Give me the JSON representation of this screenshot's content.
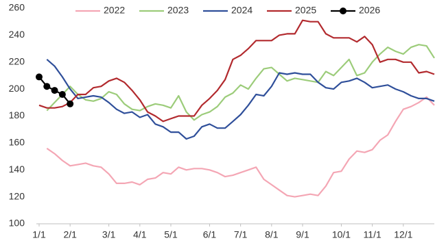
{
  "chart_data": {
    "type": "line",
    "categories": [
      "1/1",
      null,
      null,
      null,
      "2/1",
      null,
      null,
      null,
      null,
      "3/1",
      null,
      null,
      null,
      "4/1",
      null,
      null,
      null,
      "5/1",
      null,
      null,
      null,
      null,
      "6/1",
      null,
      null,
      null,
      "7/1",
      null,
      null,
      null,
      "8/1",
      null,
      null,
      null,
      "9/1",
      null,
      null,
      null,
      null,
      "10/1",
      null,
      null,
      null,
      "11/1",
      null,
      null,
      null,
      "12/1",
      null,
      null,
      null,
      null
    ],
    "ylim": [
      100,
      260
    ],
    "yticks": [
      100,
      120,
      140,
      160,
      180,
      200,
      220,
      240,
      260
    ],
    "grid": false,
    "legend": "top",
    "series": [
      {
        "name": "2022",
        "color": "#f4a6b4",
        "markers": false,
        "values": [
          null,
          156,
          152,
          147,
          143,
          144,
          145,
          143,
          142,
          137,
          130,
          130,
          131,
          129,
          133,
          134,
          138,
          137,
          142,
          140,
          141,
          141,
          140,
          138,
          135,
          136,
          138,
          140,
          142,
          133,
          129,
          125,
          121,
          120,
          121,
          122,
          121,
          128,
          138,
          139,
          148,
          154,
          153,
          155,
          162,
          166,
          176,
          185,
          187,
          190,
          194,
          188
        ]
      },
      {
        "name": "2023",
        "color": "#9ccc7a",
        "markers": false,
        "values": [
          null,
          184,
          190,
          196,
          202,
          196,
          192,
          191,
          193,
          198,
          196,
          189,
          185,
          184,
          187,
          189,
          188,
          186,
          195,
          183,
          177,
          181,
          183,
          187,
          194,
          197,
          203,
          200,
          208,
          215,
          216,
          211,
          206,
          208,
          207,
          206,
          205,
          213,
          210,
          216,
          222,
          210,
          212,
          220,
          226,
          231,
          228,
          226,
          231,
          233,
          232,
          223
        ]
      },
      {
        "name": "2024",
        "color": "#2f4f9a",
        "markers": false,
        "values": [
          null,
          222,
          217,
          209,
          200,
          193,
          194,
          195,
          194,
          190,
          185,
          182,
          183,
          179,
          181,
          174,
          172,
          168,
          168,
          163,
          165,
          172,
          174,
          171,
          171,
          176,
          181,
          188,
          196,
          195,
          202,
          212,
          211,
          212,
          211,
          211,
          205,
          201,
          200,
          205,
          206,
          208,
          205,
          201,
          202,
          203,
          200,
          198,
          195,
          193,
          193,
          191
        ]
      },
      {
        "name": "2025",
        "color": "#b22a2e",
        "markers": false,
        "values": [
          188,
          186,
          186,
          187,
          190,
          196,
          196,
          201,
          202,
          206,
          208,
          205,
          199,
          192,
          183,
          180,
          176,
          178,
          180,
          180,
          180,
          188,
          193,
          199,
          207,
          222,
          225,
          230,
          236,
          236,
          236,
          240,
          241,
          241,
          251,
          250,
          250,
          241,
          238,
          238,
          238,
          235,
          239,
          233,
          220,
          222,
          222,
          220,
          220,
          212,
          213,
          211
        ]
      },
      {
        "name": "2026",
        "color": "#000000",
        "markers": true,
        "values": [
          209,
          202,
          199,
          196,
          189,
          null,
          null,
          null,
          null,
          null,
          null,
          null,
          null,
          null,
          null,
          null,
          null,
          null,
          null,
          null,
          null,
          null,
          null,
          null,
          null,
          null,
          null,
          null,
          null,
          null,
          null,
          null,
          null,
          null,
          null,
          null,
          null,
          null,
          null,
          null,
          null,
          null,
          null,
          null,
          null,
          null,
          null,
          null,
          null,
          null,
          null,
          null
        ]
      }
    ]
  }
}
